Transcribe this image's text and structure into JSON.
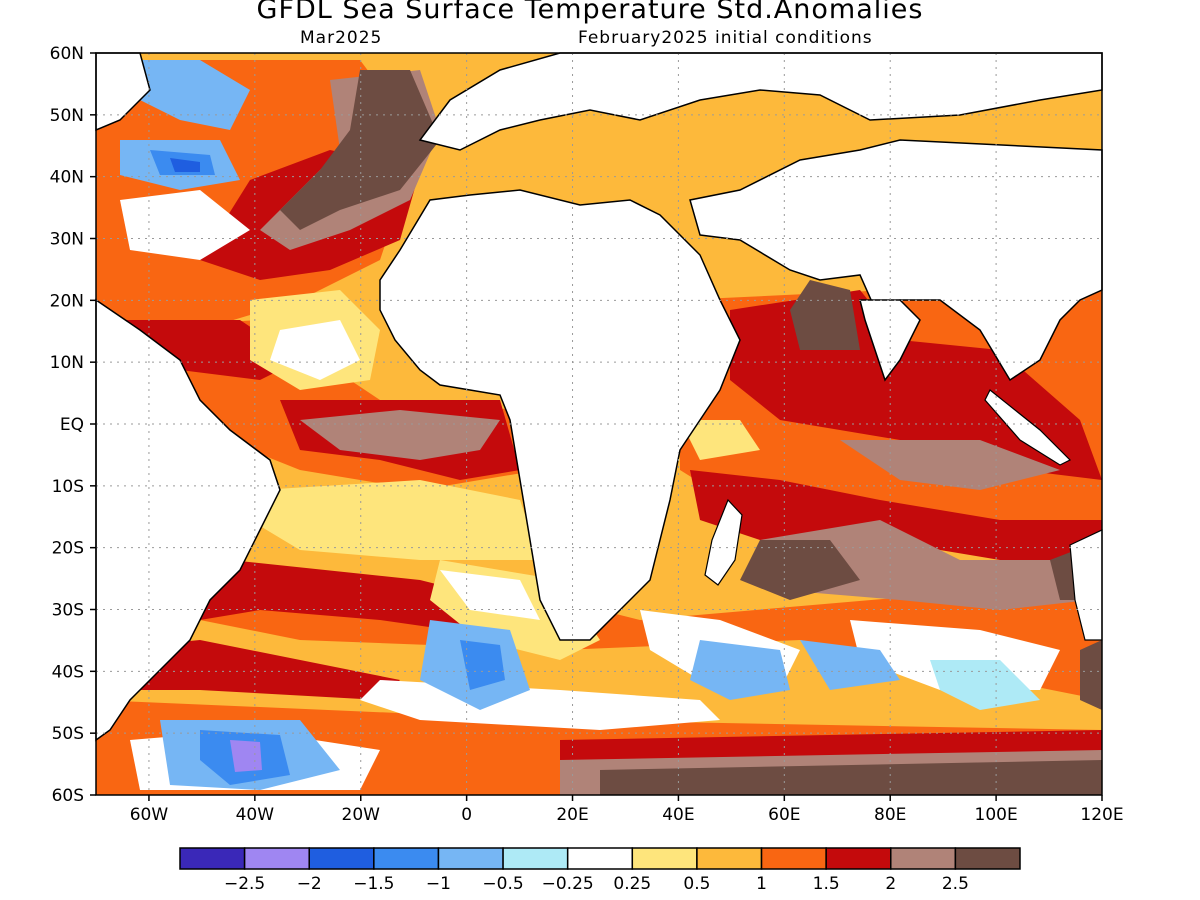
{
  "title": "GFDL Sea Surface Temperature Std.Anomalies",
  "subtitle_left": "Mar2025",
  "subtitle_right": "February2025 initial conditions",
  "lat_labels": [
    "60N",
    "50N",
    "40N",
    "30N",
    "20N",
    "10N",
    "EQ",
    "10S",
    "20S",
    "30S",
    "40S",
    "50S",
    "60S"
  ],
  "lon_labels": [
    "60W",
    "40W",
    "20W",
    "0",
    "20E",
    "40E",
    "60E",
    "80E",
    "100E",
    "120E"
  ],
  "colorbar": {
    "colors": [
      "#3a28b8",
      "#9f86f2",
      "#1f5ee0",
      "#3b8bf0",
      "#76b6f4",
      "#aeeaf6",
      "#ffffff",
      "#fee57c",
      "#fdb93b",
      "#f96612",
      "#c40a0c",
      "#b08378",
      "#6d4c42"
    ],
    "tick_labels": [
      "−2.5",
      "−2",
      "−1.5",
      "−1",
      "−0.5",
      "−0.25",
      "0.25",
      "0.5",
      "1",
      "1.5",
      "2",
      "2.5"
    ]
  },
  "map_colors": {
    "land": "#ffffff",
    "coast": "#000000",
    "grid": "#9a9a9a"
  }
}
